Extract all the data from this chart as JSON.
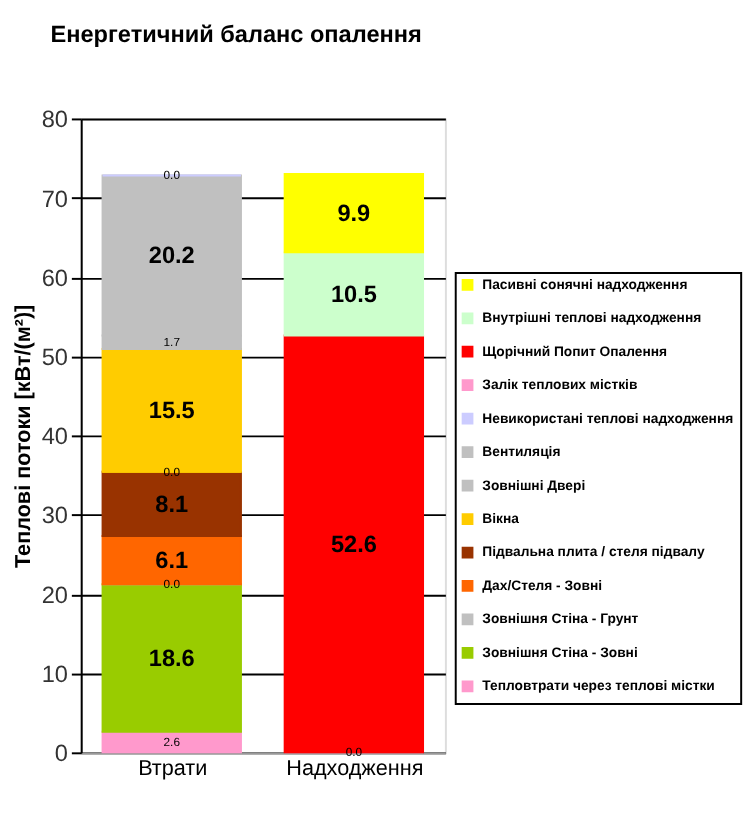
{
  "chart_data": {
    "type": "bar",
    "title": "Енергетичний баланс опалення",
    "ylabel": "Теплові потоки [кВт/(м²)]",
    "categories": [
      "Втрати",
      "Надходження"
    ],
    "stacked": true,
    "ylim": [
      0,
      80
    ],
    "yticks": [
      0,
      10,
      20,
      30,
      40,
      50,
      60,
      70,
      80
    ],
    "grid": "y",
    "legend": "right",
    "series": [
      {
        "name": "Тепловтрати через теплові містки",
        "color": "#ff99cc",
        "values": [
          2.6,
          null
        ],
        "value_labels": [
          "2.6",
          null
        ]
      },
      {
        "name": "Зовнішня Стіна - Зовні",
        "color": "#99cc00",
        "values": [
          18.6,
          null
        ],
        "value_labels": [
          "18.6",
          null
        ]
      },
      {
        "name": "Зовнішня Стіна - Грунт",
        "color": "#c0c0c0",
        "values": [
          0.0,
          null
        ],
        "value_labels": [
          "0.0",
          null
        ]
      },
      {
        "name": "Дах/Стеля - Зовні",
        "color": "#ff6600",
        "values": [
          6.1,
          null
        ],
        "value_labels": [
          "6.1",
          null
        ]
      },
      {
        "name": "Підвальна плита / стеля підвалу",
        "color": "#993300",
        "values": [
          8.1,
          null
        ],
        "value_labels": [
          "8.1",
          null
        ]
      },
      {
        "color": "#ffcc00",
        "values": [
          0.0,
          null
        ],
        "value_labels": [
          "0.0",
          null
        ]
      },
      {
        "name": "Вікна",
        "color": "#ffcc00",
        "values": [
          15.5,
          null
        ],
        "value_labels": [
          "15.5",
          null
        ]
      },
      {
        "name": "Зовнішні Двері",
        "color": "#c0c0c0",
        "values": [
          1.7,
          null
        ],
        "value_labels": [
          "1.7",
          null
        ]
      },
      {
        "name": "Вентиляція",
        "color": "#c0c0c0",
        "values": [
          20.2,
          null
        ],
        "value_labels": [
          "20.2",
          null
        ]
      },
      {
        "name": "Невикористані теплові надходження",
        "color": "#ccccff",
        "values": [
          0.0,
          null
        ],
        "value_labels": [
          "0.0",
          null
        ]
      },
      {
        "name": "Залік теплових  містків",
        "color": "#ff99cc",
        "values": [
          null,
          0.0
        ],
        "value_labels": [
          null,
          "0.0"
        ]
      },
      {
        "name": "Щорічний Попит Опалення",
        "color": "#ff0000",
        "values": [
          null,
          52.6
        ],
        "value_labels": [
          null,
          "52.6"
        ]
      },
      {
        "name": "Внутрішні теплові надходження",
        "color": "#ccffcc",
        "values": [
          null,
          10.5
        ],
        "value_labels": [
          null,
          "10.5"
        ]
      },
      {
        "name": "Пасивні сонячні надходження",
        "color": "#ffff00",
        "values": [
          null,
          9.9
        ],
        "value_labels": [
          null,
          "9.9"
        ]
      }
    ]
  }
}
